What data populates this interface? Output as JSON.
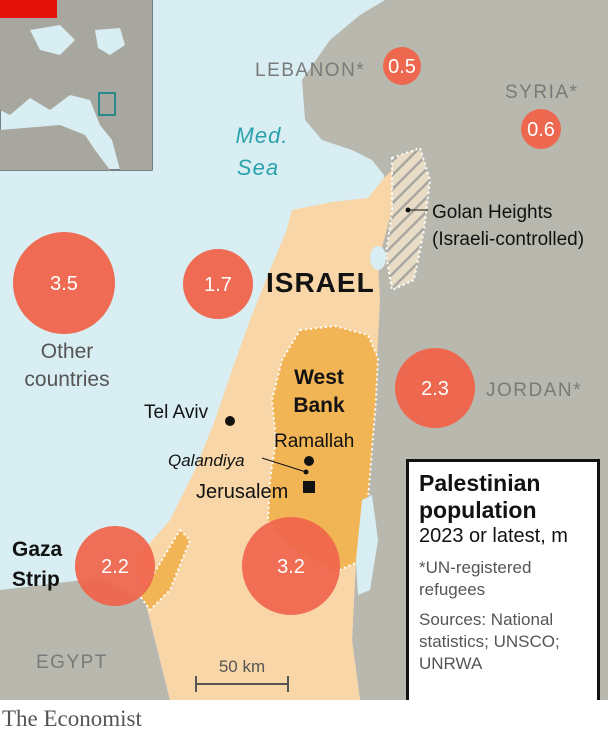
{
  "map": {
    "sea_label": [
      "Med.",
      "Sea"
    ],
    "countries": {
      "lebanon": "LEBANON*",
      "syria": "SYRIA*",
      "jordan": "JORDAN*",
      "egypt": "EGYPT",
      "israel": "ISRAEL"
    },
    "regions": {
      "golan": [
        "Golan Heights",
        "(Israeli-controlled)"
      ],
      "west_bank": [
        "West",
        "Bank"
      ],
      "gaza": [
        "Gaza",
        "Strip"
      ],
      "other": [
        "Other",
        "countries"
      ]
    },
    "places": {
      "tel_aviv": "Tel Aviv",
      "ramallah": "Ramallah",
      "qalandiya": "Qalandiya",
      "jerusalem": "Jerusalem"
    },
    "scale_bar": "50 km",
    "population_bubbles": {
      "lebanon": "0.5",
      "syria": "0.6",
      "jordan": "2.3",
      "other_countries": "3.5",
      "israel": "1.7",
      "gaza": "2.2",
      "west_bank": "3.2"
    },
    "colors": {
      "bubble": "#f0634a",
      "israel_land": "#f9d6a8",
      "palestinian_land": "#f2b556",
      "neighbour_land": "#b8b8ae",
      "sea": "#d9eef3",
      "accent_red": "#e3120b"
    }
  },
  "key": {
    "title": "Palestinian population",
    "subtitle": "2023 or latest, m",
    "note": "*UN-registered refugees",
    "sources": "Sources: National statistics; UNSCO; UNRWA"
  },
  "footer": {
    "brand": "The Economist"
  }
}
